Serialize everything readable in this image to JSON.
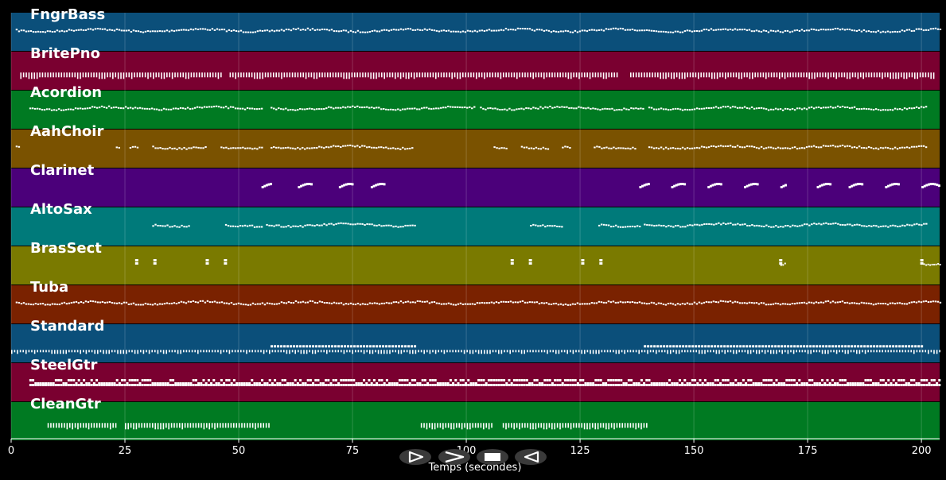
{
  "axis": {
    "x_title": "Temps (secondes)",
    "x_range": [
      0,
      204
    ],
    "ticks": [
      0,
      25,
      50,
      75,
      100,
      125,
      150,
      175,
      200
    ]
  },
  "tracks": [
    {
      "name": "FngrBass",
      "color": "#0b4f7a",
      "style": "continuous",
      "segments": [
        [
          1,
          204
        ]
      ]
    },
    {
      "name": "BritePno",
      "color": "#7a0030",
      "style": "pulse",
      "segments": [
        [
          2,
          46
        ],
        [
          48,
          133
        ],
        [
          136,
          203
        ]
      ]
    },
    {
      "name": "Acordion",
      "color": "#007a22",
      "style": "phrase",
      "segments": [
        [
          4,
          55
        ],
        [
          57,
          102
        ],
        [
          103,
          139
        ],
        [
          140,
          201
        ]
      ]
    },
    {
      "name": "AahChoir",
      "color": "#7a5200",
      "style": "phrase",
      "segments": [
        [
          1,
          2
        ],
        [
          23,
          24
        ],
        [
          26,
          28
        ],
        [
          31,
          43
        ],
        [
          46,
          55
        ],
        [
          57,
          88
        ],
        [
          106,
          109
        ],
        [
          112,
          118
        ],
        [
          121,
          123
        ],
        [
          128,
          137
        ],
        [
          140,
          201
        ]
      ]
    },
    {
      "name": "Clarinet",
      "color": "#4b007a",
      "style": "motif",
      "segments": [
        [
          55,
          57
        ],
        [
          63,
          66
        ],
        [
          72,
          75
        ],
        [
          79,
          82
        ],
        [
          138,
          140
        ],
        [
          145,
          148
        ],
        [
          153,
          156
        ],
        [
          161,
          164
        ],
        [
          169,
          170
        ],
        [
          177,
          180
        ],
        [
          184,
          187
        ],
        [
          192,
          195
        ],
        [
          200,
          204
        ]
      ]
    },
    {
      "name": "AltoSax",
      "color": "#007a7a",
      "style": "phrase",
      "segments": [
        [
          31,
          39
        ],
        [
          47,
          55
        ],
        [
          56,
          89
        ],
        [
          114,
          121
        ],
        [
          129,
          138
        ],
        [
          139,
          201
        ]
      ]
    },
    {
      "name": "BrasSect",
      "color": "#7a7a00",
      "style": "hits",
      "segments": [
        [
          27.5,
          27.5
        ],
        [
          31.5,
          31.5
        ],
        [
          43,
          43
        ],
        [
          47,
          47
        ],
        [
          110,
          110
        ],
        [
          114,
          114
        ],
        [
          125.5,
          125.5
        ],
        [
          129.5,
          129.5
        ],
        [
          169,
          170
        ],
        [
          200,
          204
        ]
      ]
    },
    {
      "name": "Tuba",
      "color": "#7a2200",
      "style": "continuous",
      "segments": [
        [
          1,
          204
        ]
      ]
    },
    {
      "name": "Standard",
      "color": "#0b4f7a",
      "style": "drums",
      "segments": [
        [
          0,
          204
        ]
      ],
      "dense": [
        [
          57,
          89
        ],
        [
          139,
          200
        ]
      ]
    },
    {
      "name": "SteelGtr",
      "color": "#7a0030",
      "style": "thick",
      "segments": [
        [
          4,
          204
        ]
      ]
    },
    {
      "name": "CleanGtr",
      "color": "#007a22",
      "style": "pulse",
      "segments": [
        [
          8,
          23
        ],
        [
          25,
          57
        ],
        [
          90,
          106
        ],
        [
          108,
          140
        ]
      ]
    }
  ],
  "controls": [
    {
      "name": "play-button",
      "glyph": "play-outline-icon"
    },
    {
      "name": "fast-forward-button",
      "glyph": "chevron-right-icon"
    },
    {
      "name": "stop-button",
      "glyph": "stop-icon"
    },
    {
      "name": "rewind-button",
      "glyph": "play-reverse-outline-icon"
    }
  ]
}
